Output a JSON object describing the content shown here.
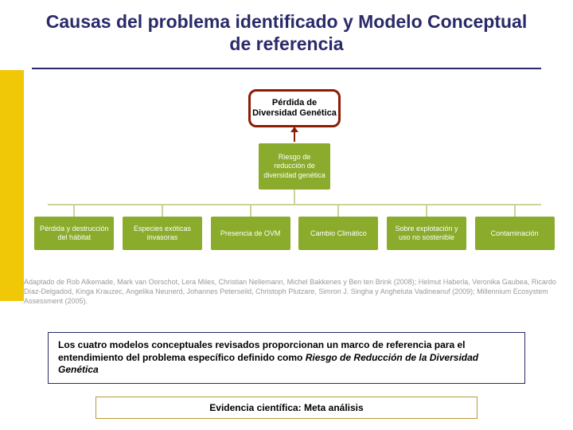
{
  "title": "Causas del problema identificado y Modelo Conceptual de referencia",
  "colors": {
    "title_text": "#2a2a6a",
    "underline": "#2a2a6a",
    "left_stripe": "#f0c808",
    "root_border": "#8c1c04",
    "root_bg": "#ffffff",
    "arrow": "#8c1c04",
    "node_bg": "#8aab2b",
    "node_text": "#ffffff",
    "connector": "#c8d49a",
    "citation_text": "#9a9a9a",
    "summary_border": "#2a2a6a",
    "evidence_border": "#b89a3a",
    "background": "#ffffff"
  },
  "diagram": {
    "root": "Pérdida de Diversidad Genética",
    "mid": "Riesgo de reducción de diversidad genética",
    "leaves": [
      "Pérdida y destrucción del hábitat",
      "Especies exóticas invasoras",
      "Presencia de OVM",
      "Cambio Climático",
      "Sobre explotación y uso no sostenible",
      "Contaminación"
    ]
  },
  "citation": "Adaptado de Rob Alkemade, Mark van Oorschot, Lera Miles, Christian Nellemann, Michel Bakkenes y Ben ten Brink (2008); Helmut Haberla, Veronika Gaubea, Ricardo Díaz-Delgadod, Kinga Krauzec, Angelika Neunerd, Johannes Peterseild, Christoph Plutzare, Simron J. Singha y Angheluta Vadineanuf (2009); Millennium Ecosystem Assessment (2005).",
  "summary": {
    "part1": "Los cuatro modelos conceptuales revisados proporcionan un marco de referencia para el entendimiento del problema específico definido como ",
    "part2_italic": "Riesgo de Reducción de la Diversidad Genética"
  },
  "evidence": "Evidencia científica: Meta análisis"
}
